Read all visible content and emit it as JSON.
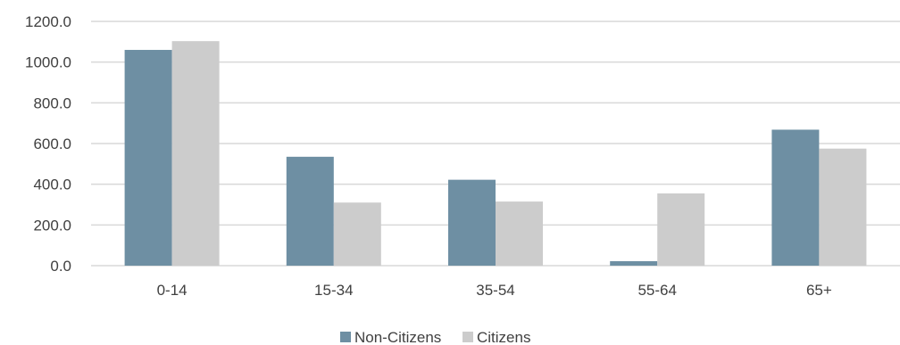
{
  "chart_data": {
    "type": "bar",
    "categories": [
      "0-14",
      "15-34",
      "35-54",
      "55-64",
      "65+"
    ],
    "series": [
      {
        "name": "Non-Citizens",
        "color": "#6e8fa3",
        "values": [
          1060,
          535,
          422,
          22,
          668
        ]
      },
      {
        "name": "Citizens",
        "color": "#cccccc",
        "values": [
          1103,
          310,
          315,
          355,
          575
        ]
      }
    ],
    "ylim": [
      0,
      1200
    ],
    "yticks": [
      "0.0",
      "200.0",
      "400.0",
      "600.0",
      "800.0",
      "1000.0",
      "1200.0"
    ],
    "grid": true,
    "gridColor": "#d9d9d9",
    "legend": "bottom-center"
  }
}
